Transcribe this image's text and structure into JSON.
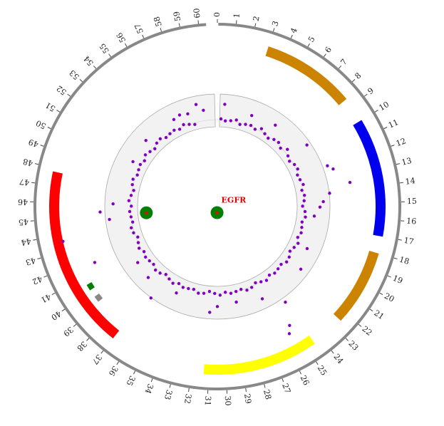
{
  "chart_data": {
    "type": "circos",
    "axis": {
      "min": 0,
      "max": 61,
      "tick_step": 1,
      "tick_labels": [
        "0",
        "1",
        "2",
        "3",
        "4",
        "5",
        "6",
        "7",
        "8",
        "9",
        "10",
        "11",
        "12",
        "13",
        "14",
        "15",
        "16",
        "17",
        "18",
        "19",
        "20",
        "21",
        "22",
        "23",
        "24",
        "25",
        "26",
        "27",
        "28",
        "29",
        "30",
        "31",
        "32",
        "33",
        "34",
        "35",
        "36",
        "37",
        "38",
        "39",
        "40",
        "41",
        "42",
        "43",
        "44",
        "45",
        "46",
        "47",
        "48",
        "49",
        "50",
        "51",
        "52",
        "53",
        "54",
        "55",
        "56",
        "57",
        "58",
        "59",
        "60"
      ]
    },
    "arcs": [
      {
        "start": 3.0,
        "end": 8.5,
        "track": "outer",
        "color": "#cc8400"
      },
      {
        "start": 10.0,
        "end": 17.0,
        "track": "outer",
        "color": "#0000ee"
      },
      {
        "start": 18.0,
        "end": 22.5,
        "track": "outer",
        "color": "#cc8400"
      },
      {
        "start": 24.5,
        "end": 31.3,
        "track": "outer",
        "color": "#ffff00"
      },
      {
        "start": 37.0,
        "end": 47.8,
        "track": "outer",
        "color": "#ff0000"
      },
      {
        "start": 40.1,
        "end": 40.5,
        "track": "inner",
        "color": "#008000"
      },
      {
        "start": 39.2,
        "end": 39.6,
        "track": "inner",
        "color": "#888888"
      }
    ],
    "scatter": {
      "color": "#8000c0",
      "points": [
        [
          0.4,
          1.01
        ],
        [
          0.9,
          0.99
        ],
        [
          1.5,
          1.0
        ],
        [
          2.1,
          1.02
        ],
        [
          2.6,
          0.98
        ],
        [
          3.2,
          1.0
        ],
        [
          3.8,
          1.01
        ],
        [
          4.4,
          0.99
        ],
        [
          5.0,
          1.03
        ],
        [
          5.6,
          1.0
        ],
        [
          6.2,
          0.98
        ],
        [
          6.8,
          1.01
        ],
        [
          7.4,
          1.02
        ],
        [
          8.0,
          0.99
        ],
        [
          8.6,
          1.04
        ],
        [
          9.2,
          1.0
        ],
        [
          9.8,
          0.98
        ],
        [
          10.4,
          1.01
        ],
        [
          11.0,
          1.02
        ],
        [
          11.6,
          0.99
        ],
        [
          12.2,
          1.0
        ],
        [
          12.8,
          1.02
        ],
        [
          13.4,
          0.99
        ],
        [
          14.0,
          1.01
        ],
        [
          14.6,
          1.0
        ],
        [
          15.2,
          0.98
        ],
        [
          15.8,
          1.01
        ],
        [
          16.4,
          1.02
        ],
        [
          17.0,
          0.99
        ],
        [
          17.6,
          1.0
        ],
        [
          18.2,
          1.01
        ],
        [
          18.8,
          0.99
        ],
        [
          19.4,
          1.02
        ],
        [
          20.0,
          1.0
        ],
        [
          20.6,
          0.98
        ],
        [
          21.2,
          1.01
        ],
        [
          21.8,
          1.02
        ],
        [
          22.4,
          0.99
        ],
        [
          23.0,
          1.0
        ],
        [
          23.6,
          1.01
        ],
        [
          24.2,
          0.99
        ],
        [
          24.8,
          1.02
        ],
        [
          25.4,
          1.0
        ],
        [
          26.0,
          0.98
        ],
        [
          26.6,
          1.01
        ],
        [
          27.2,
          1.02
        ],
        [
          27.8,
          0.99
        ],
        [
          28.4,
          1.0
        ],
        [
          29.0,
          1.01
        ],
        [
          29.6,
          0.99
        ],
        [
          30.2,
          1.02
        ],
        [
          30.8,
          1.0
        ],
        [
          31.4,
          0.98
        ],
        [
          32.0,
          1.01
        ],
        [
          32.6,
          1.02
        ],
        [
          33.2,
          0.99
        ],
        [
          33.8,
          1.0
        ],
        [
          34.4,
          1.01
        ],
        [
          35.0,
          0.99
        ],
        [
          35.6,
          1.02
        ],
        [
          36.2,
          1.0
        ],
        [
          36.8,
          0.98
        ],
        [
          37.4,
          1.01
        ],
        [
          38.0,
          1.02
        ],
        [
          38.6,
          0.99
        ],
        [
          39.2,
          1.0
        ],
        [
          39.8,
          1.01
        ],
        [
          40.4,
          0.99
        ],
        [
          41.0,
          1.02
        ],
        [
          41.6,
          1.0
        ],
        [
          42.2,
          0.98
        ],
        [
          42.8,
          1.01
        ],
        [
          43.4,
          1.02
        ],
        [
          44.0,
          0.99
        ],
        [
          44.6,
          1.0
        ],
        [
          45.2,
          1.01
        ],
        [
          45.8,
          0.99
        ],
        [
          46.4,
          1.02
        ],
        [
          47.0,
          1.0
        ],
        [
          47.6,
          0.98
        ],
        [
          48.2,
          1.01
        ],
        [
          48.8,
          1.02
        ],
        [
          49.4,
          0.99
        ],
        [
          50.0,
          1.0
        ],
        [
          50.6,
          1.01
        ],
        [
          51.2,
          0.99
        ],
        [
          51.8,
          1.02
        ],
        [
          52.4,
          1.0
        ],
        [
          53.0,
          0.98
        ],
        [
          53.6,
          1.01
        ],
        [
          54.2,
          1.02
        ],
        [
          54.8,
          0.99
        ],
        [
          55.4,
          1.0
        ],
        [
          56.0,
          1.01
        ],
        [
          56.6,
          0.99
        ],
        [
          57.2,
          1.02
        ],
        [
          57.8,
          1.0
        ],
        [
          58.4,
          0.98
        ],
        [
          0.7,
          1.18
        ],
        [
          3.5,
          1.12
        ],
        [
          6.0,
          1.15
        ],
        [
          11.8,
          1.35
        ],
        [
          12.2,
          1.4
        ],
        [
          13.5,
          1.55
        ],
        [
          14.1,
          1.3
        ],
        [
          14.8,
          1.22
        ],
        [
          15.3,
          1.18
        ],
        [
          16.2,
          1.12
        ],
        [
          19.5,
          1.14
        ],
        [
          21.5,
          1.2
        ],
        [
          25.2,
          1.6
        ],
        [
          25.5,
          1.68
        ],
        [
          28.6,
          1.12
        ],
        [
          30.5,
          1.15
        ],
        [
          34.8,
          1.1
        ],
        [
          38.0,
          1.14
        ],
        [
          39.8,
          1.12
        ],
        [
          43.6,
          1.82
        ],
        [
          41.6,
          1.55
        ],
        [
          45.3,
          1.35
        ],
        [
          46.0,
          1.2
        ],
        [
          50.5,
          1.1
        ],
        [
          53.0,
          1.12
        ],
        [
          56.5,
          1.12
        ],
        [
          57.2,
          1.14
        ],
        [
          58.0,
          1.12
        ],
        [
          59.0,
          1.2
        ],
        [
          59.6,
          1.12
        ],
        [
          24.5,
          1.35
        ],
        [
          26.1,
          1.18
        ],
        [
          31.2,
          1.22
        ],
        [
          44.6,
          1.25
        ],
        [
          36.6,
          1.3
        ],
        [
          9.4,
          1.25
        ]
      ]
    },
    "genes": [
      {
        "name": "EGFR",
        "position": 31.0,
        "radius_frac": 0.07,
        "marker_color": "#008000",
        "dot_color": "#ff0000"
      },
      {
        "name": "",
        "position": 44.9,
        "radius_frac": 0.82,
        "marker_color": "#008000",
        "dot_color": "#ff0000"
      }
    ],
    "track_bands": [
      {
        "type": "shaded-ring",
        "color": "#f2f2f2",
        "stroke": "#aaaaaa"
      }
    ]
  }
}
